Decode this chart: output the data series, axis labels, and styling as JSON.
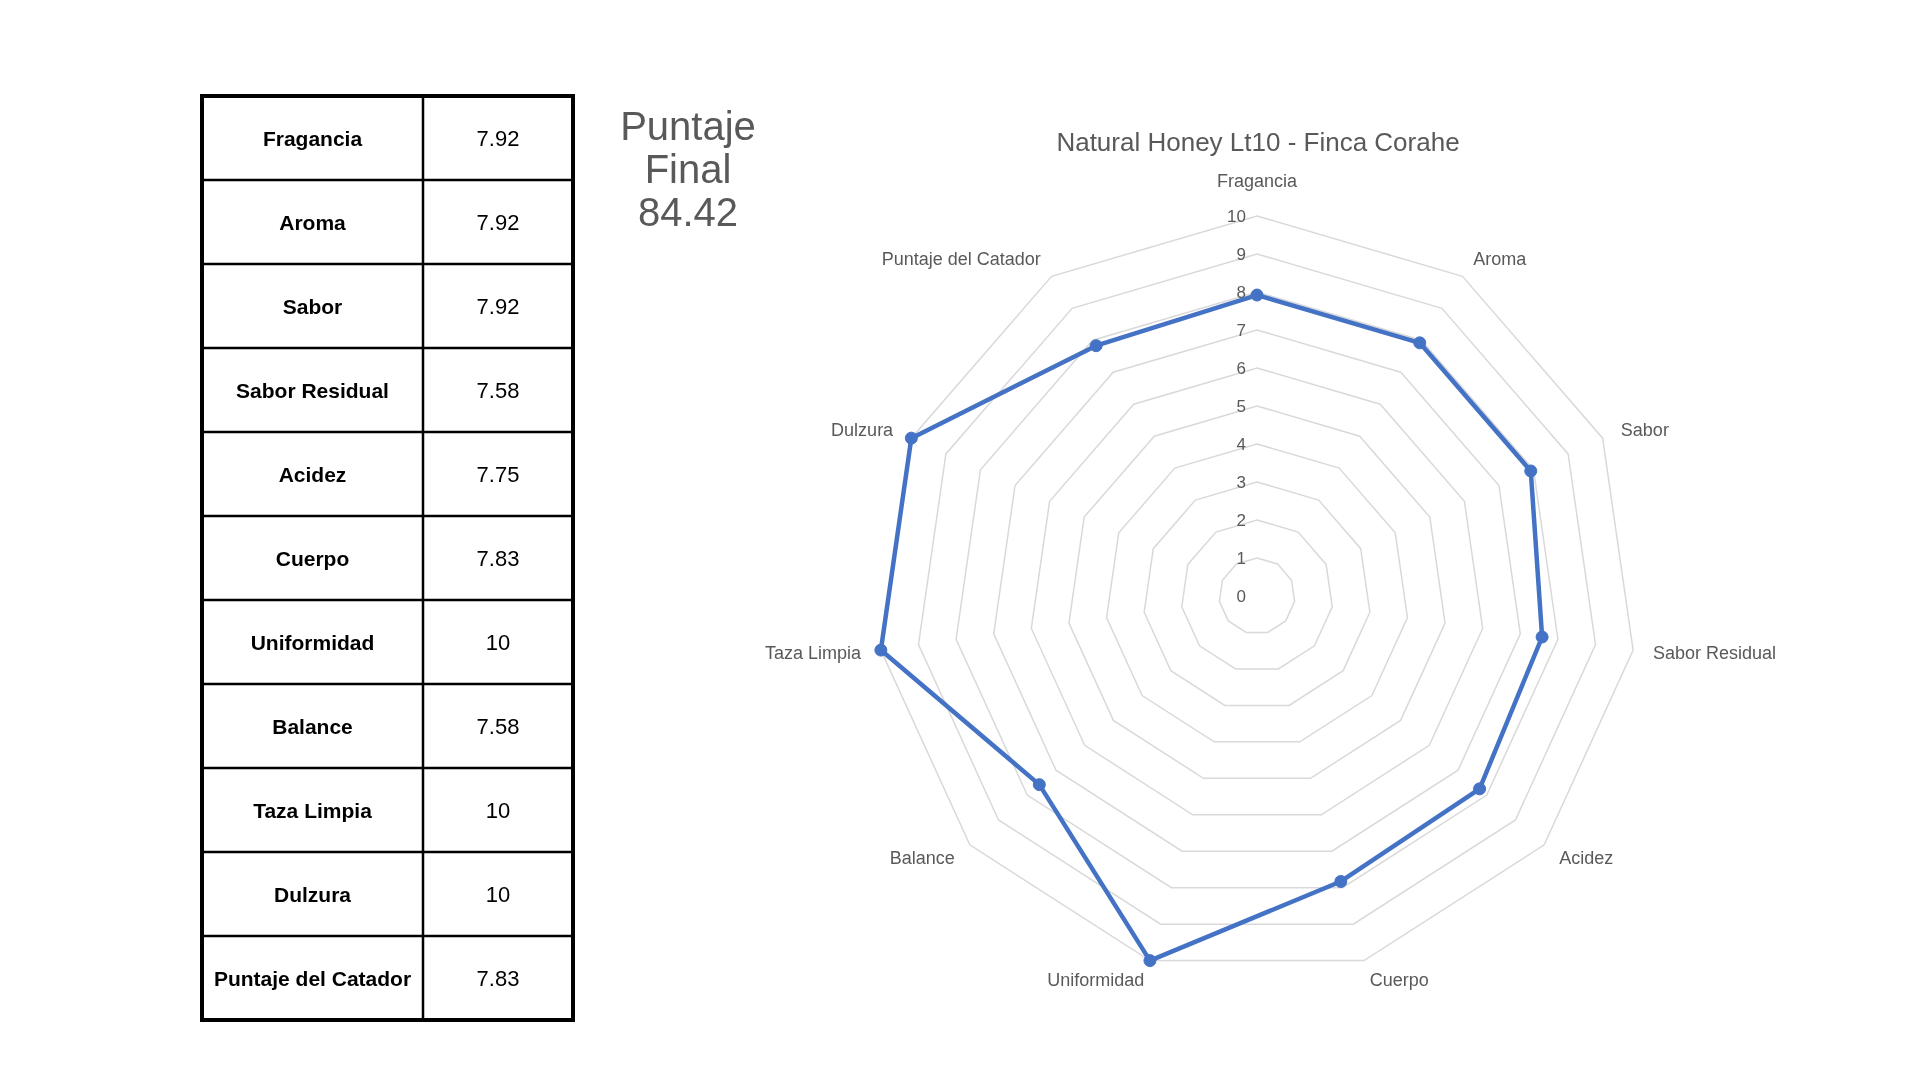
{
  "chart_data": [
    {
      "type": "other",
      "categories": [
        "Fragancia",
        "Aroma",
        "Sabor",
        "Sabor Residual",
        "Acidez",
        "Cuerpo",
        "Uniformidad",
        "Balance",
        "Taza Limpia",
        "Dulzura",
        "Puntaje del Catador"
      ],
      "values": [
        7.92,
        7.92,
        7.92,
        7.58,
        7.75,
        7.83,
        10,
        7.58,
        10,
        10,
        7.83
      ],
      "data_labels": true,
      "annotations": [
        "Puntaje Final 84.42"
      ]
    },
    {
      "type": "radar",
      "title": "Natural Honey Lt10 - Finca Corahe",
      "categories": [
        "Fragancia",
        "Aroma",
        "Sabor",
        "Sabor Residual",
        "Acidez",
        "Cuerpo",
        "Uniformidad",
        "Balance",
        "Taza Limpia",
        "Dulzura",
        "Puntaje del Catador"
      ],
      "series": [
        {
          "color": "#4472c4",
          "values": [
            7.92,
            7.92,
            7.92,
            7.58,
            7.75,
            7.83,
            10,
            7.58,
            10,
            10,
            7.83
          ]
        }
      ],
      "ylim": [
        0,
        10
      ],
      "yticks": [
        0,
        1,
        2,
        3,
        4,
        5,
        6,
        7,
        8,
        9,
        10
      ],
      "grid": true,
      "marker": "circle",
      "line_style": "solid"
    }
  ]
}
